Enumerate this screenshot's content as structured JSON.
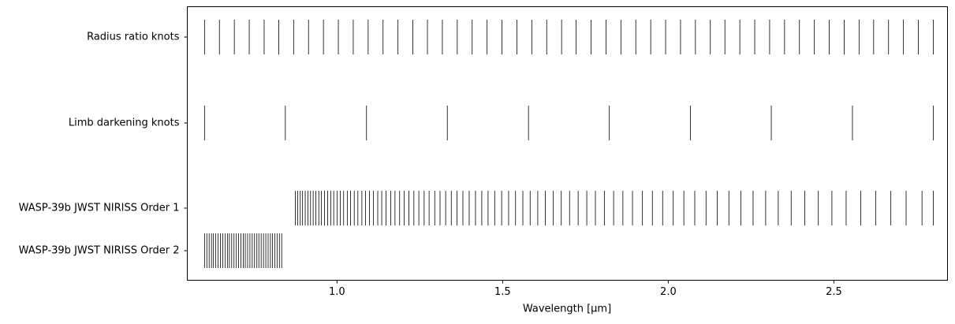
{
  "chart_data": {
    "type": "eventplot",
    "xlabel": "Wavelength [μm]",
    "xlim": [
      0.548,
      2.843
    ],
    "xticks": [
      {
        "value": 1.0,
        "label": "1.0"
      },
      1.5,
      {
        "value": 2.0,
        "label": "2.0"
      },
      2.5
    ],
    "color": "#000000",
    "categories": [
      "Radius ratio knots",
      "Limb darkening knots",
      "WASP-39b JWST NIRISS Order 1",
      "WASP-39b JWST NIRISS Order 2"
    ],
    "values": [
      [
        0.6,
        0.645,
        0.69,
        0.735,
        0.78,
        0.824,
        0.869,
        0.914,
        0.959,
        1.004,
        1.049,
        1.094,
        1.139,
        1.184,
        1.229,
        1.273,
        1.318,
        1.363,
        1.408,
        1.453,
        1.498,
        1.543,
        1.588,
        1.633,
        1.678,
        1.722,
        1.767,
        1.812,
        1.857,
        1.902,
        1.947,
        1.992,
        2.037,
        2.082,
        2.127,
        2.171,
        2.216,
        2.261,
        2.306,
        2.351,
        2.396,
        2.441,
        2.486,
        2.531,
        2.576,
        2.62,
        2.665,
        2.71,
        2.755,
        2.8
      ],
      [
        0.6,
        0.844,
        1.089,
        1.333,
        1.578,
        1.822,
        2.067,
        2.311,
        2.556,
        2.8
      ],
      [
        0.874,
        0.881,
        0.889,
        0.896,
        0.904,
        0.912,
        0.92,
        0.928,
        0.936,
        0.945,
        0.953,
        0.962,
        0.972,
        0.981,
        0.99,
        1.0,
        1.01,
        1.02,
        1.031,
        1.041,
        1.052,
        1.063,
        1.075,
        1.086,
        1.098,
        1.11,
        1.123,
        1.135,
        1.148,
        1.162,
        1.175,
        1.189,
        1.203,
        1.217,
        1.232,
        1.247,
        1.263,
        1.278,
        1.295,
        1.311,
        1.328,
        1.345,
        1.362,
        1.38,
        1.399,
        1.418,
        1.437,
        1.456,
        1.476,
        1.497,
        1.518,
        1.539,
        1.561,
        1.583,
        1.606,
        1.629,
        1.653,
        1.677,
        1.702,
        1.728,
        1.754,
        1.78,
        1.807,
        1.835,
        1.863,
        1.892,
        1.922,
        1.952,
        1.983,
        2.015,
        2.047,
        2.08,
        2.114,
        2.148,
        2.183,
        2.219,
        2.256,
        2.294,
        2.332,
        2.371,
        2.412,
        2.453,
        2.494,
        2.537,
        2.581,
        2.626,
        2.672,
        2.718,
        2.766,
        2.8
      ],
      [
        0.6,
        0.607,
        0.614,
        0.621,
        0.627,
        0.634,
        0.641,
        0.648,
        0.655,
        0.662,
        0.669,
        0.675,
        0.682,
        0.689,
        0.696,
        0.703,
        0.71,
        0.717,
        0.723,
        0.73,
        0.737,
        0.744,
        0.751,
        0.758,
        0.764,
        0.771,
        0.778,
        0.785,
        0.792,
        0.799,
        0.805,
        0.812,
        0.819,
        0.826,
        0.833
      ]
    ]
  }
}
